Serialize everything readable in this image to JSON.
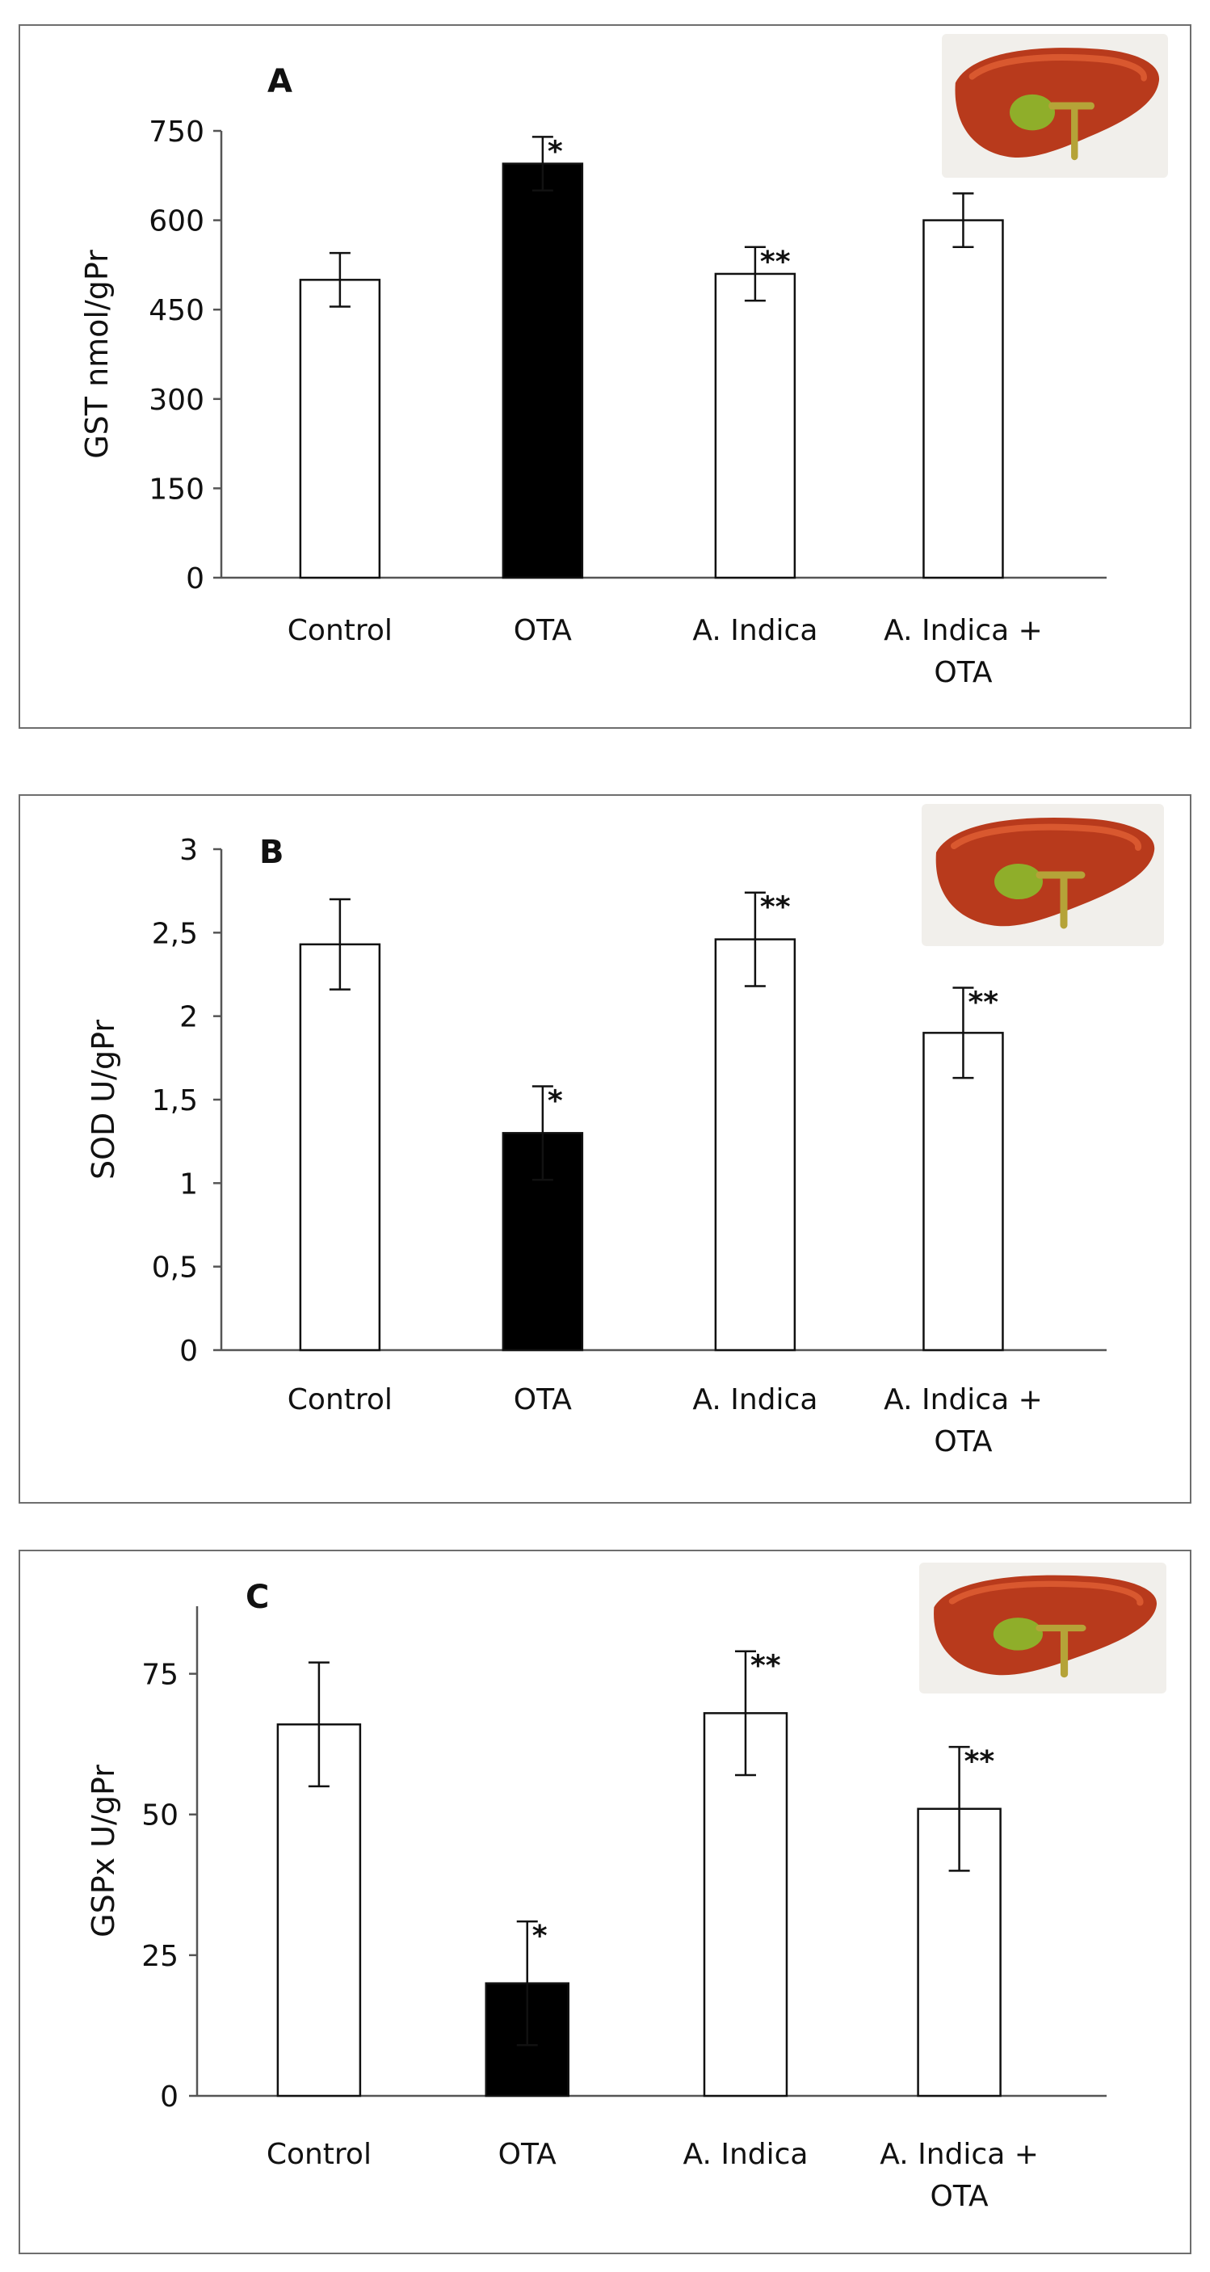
{
  "chart_data": [
    {
      "type": "bar",
      "panel": "A",
      "ylabel": "GST nmol/gPr",
      "ylim": [
        0,
        750
      ],
      "yticks": [
        0,
        150,
        300,
        450,
        600,
        750
      ],
      "ytick_labels": [
        "0",
        "150",
        "300",
        "450",
        "600",
        "750"
      ],
      "categories": [
        "Control",
        "OTA",
        "A. Indica",
        "A. Indica + OTA"
      ],
      "category_lines": [
        [
          "Control"
        ],
        [
          "OTA"
        ],
        [
          "A. Indica"
        ],
        [
          "A. Indica +",
          "OTA"
        ]
      ],
      "values": [
        500,
        695,
        510,
        600
      ],
      "errors": [
        45,
        45,
        45,
        45
      ],
      "significance": [
        "",
        "*",
        "**",
        ""
      ],
      "fills": [
        "#ffffff",
        "#000000",
        "#ffffff",
        "#ffffff"
      ],
      "icon": "liver-icon"
    },
    {
      "type": "bar",
      "panel": "B",
      "ylabel": "SOD U/gPr",
      "ylim": [
        0,
        3
      ],
      "yticks": [
        0,
        0.5,
        1,
        1.5,
        2,
        2.5,
        3
      ],
      "ytick_labels": [
        "0",
        "0,5",
        "1",
        "1,5",
        "2",
        "2,5",
        "3"
      ],
      "categories": [
        "Control",
        "OTA",
        "A. Indica",
        "A. Indica + OTA"
      ],
      "category_lines": [
        [
          "Control"
        ],
        [
          "OTA"
        ],
        [
          "A. Indica"
        ],
        [
          "A. Indica +",
          "OTA"
        ]
      ],
      "values": [
        2.43,
        1.3,
        2.46,
        1.9
      ],
      "errors": [
        0.27,
        0.28,
        0.28,
        0.27
      ],
      "significance": [
        "",
        "*",
        "**",
        "**"
      ],
      "fills": [
        "#ffffff",
        "#000000",
        "#ffffff",
        "#ffffff"
      ],
      "icon": "liver-icon"
    },
    {
      "type": "bar",
      "panel": "C",
      "ylabel": "GSPx U/gPr",
      "ylim": [
        0,
        87
      ],
      "yticks": [
        0,
        25,
        50,
        75
      ],
      "ytick_labels": [
        "0",
        "25",
        "50",
        "75"
      ],
      "categories": [
        "Control",
        "OTA",
        "A. Indica",
        "A. Indica + OTA"
      ],
      "category_lines": [
        [
          "Control"
        ],
        [
          "OTA"
        ],
        [
          "A. Indica"
        ],
        [
          "A. Indica +",
          "OTA"
        ]
      ],
      "values": [
        66,
        20,
        68,
        51
      ],
      "errors": [
        11,
        11,
        11,
        11
      ],
      "significance": [
        "",
        "*",
        "**",
        "**"
      ],
      "fills": [
        "#ffffff",
        "#000000",
        "#ffffff",
        "#ffffff"
      ],
      "icon": "liver-icon"
    }
  ],
  "colors": {
    "liver": "#b83a1c",
    "liver_highlight": "#d9582f",
    "gallbladder": "#8fae2a",
    "bile_duct": "#b5a338",
    "icon_bg": "#f1efeb",
    "axis": "#555555",
    "bar_stroke": "#111111"
  }
}
